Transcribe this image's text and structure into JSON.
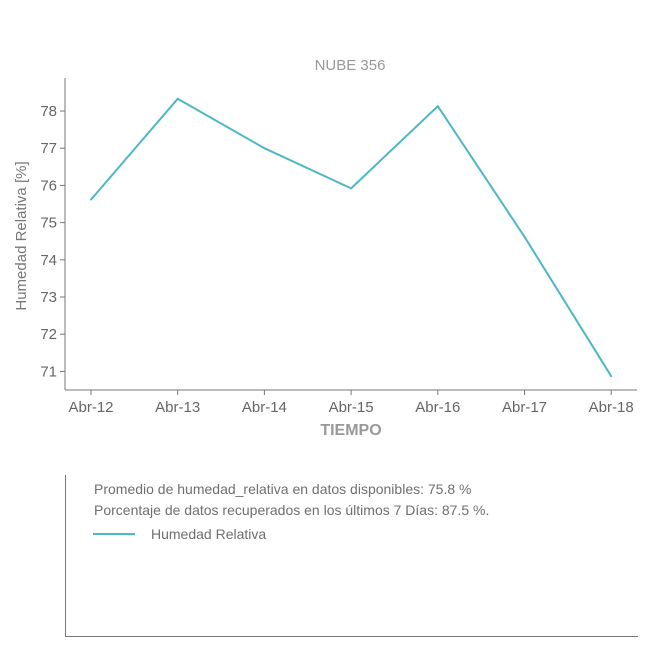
{
  "chart_data": {
    "type": "line",
    "title": "NUBE 356",
    "xlabel": "TIEMPO",
    "ylabel": "Humedad Relativa [%]",
    "categories": [
      "Abr-12",
      "Abr-13",
      "Abr-14",
      "Abr-15",
      "Abr-16",
      "Abr-17",
      "Abr-18"
    ],
    "y_ticks": [
      71,
      72,
      73,
      74,
      75,
      76,
      77,
      78
    ],
    "ylim": [
      70.5,
      78.7
    ],
    "series": [
      {
        "name": "Humedad Relativa",
        "color": "#4db8c4",
        "points": [
          {
            "x": "Abr-12",
            "y": 75.62
          },
          {
            "x": "Abr-13",
            "y": 78.33
          },
          {
            "x": "Abr-14",
            "y": 77.0
          },
          {
            "x": "Abr-15",
            "y": 75.92
          },
          {
            "x": "Abr-16",
            "y": 78.13
          },
          {
            "x": "Abr-17",
            "y": 74.62
          },
          {
            "x": "Abr-18",
            "y": 70.87
          }
        ]
      }
    ],
    "grid": false
  },
  "info": {
    "line1": "Promedio de humedad_relativa en datos disponibles: 75.8 %",
    "line2": "Porcentaje de datos recuperados en los últimos 7 Días: 87.5 %."
  },
  "legend": {
    "label": "Humedad Relativa",
    "color": "#4db8c4"
  }
}
